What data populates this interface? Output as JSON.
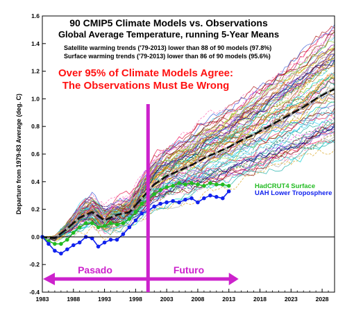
{
  "chart_data": {
    "type": "line",
    "title": "90 CMIP5 Climate Models vs. Observations",
    "subtitle": "Global Average Temperature, running 5-Year Means",
    "notes": [
      "Satellite warming trends ('79-2013) lower than 88 of 90 models (97.8%)",
      "Surface warming trends ('79-2013) lower than 86 of 90 models (95.6%)"
    ],
    "headline": [
      "Over 95% of Climate Models Agree:",
      "The Observations Must Be Wrong"
    ],
    "ylabel": "Departure from 1979-83 Average (deg. C)",
    "xlabel": "",
    "xlim": [
      1983,
      2030
    ],
    "ylim": [
      -0.4,
      1.6
    ],
    "x_ticks": [
      "1983",
      "1988",
      "1993",
      "1998",
      "2003",
      "2008",
      "2013",
      "2018",
      "2023",
      "2028"
    ],
    "y_ticks": [
      "-0.4",
      "-0.2",
      "0.0",
      "0.2",
      "0.4",
      "0.6",
      "0.8",
      "1.0",
      "1.2",
      "1.4",
      "1.6"
    ],
    "grid": false,
    "model_count": 90,
    "model_mean": {
      "x": [
        1983,
        1985,
        1987,
        1989,
        1991,
        1993,
        1995,
        1997,
        1999,
        2001,
        2003,
        2005,
        2007,
        2009,
        2011,
        2013,
        2015,
        2017,
        2019,
        2021,
        2023,
        2025,
        2027,
        2029,
        2030
      ],
      "values": [
        0.0,
        -0.01,
        0.06,
        0.14,
        0.18,
        0.12,
        0.16,
        0.18,
        0.28,
        0.38,
        0.44,
        0.48,
        0.52,
        0.57,
        0.61,
        0.65,
        0.7,
        0.74,
        0.79,
        0.84,
        0.89,
        0.94,
        1.0,
        1.05,
        1.07
      ]
    },
    "series": [
      {
        "name": "HadCRUT4 Surface",
        "color": "#22bb22",
        "x": [
          1983,
          1984,
          1985,
          1986,
          1987,
          1988,
          1989,
          1990,
          1991,
          1992,
          1993,
          1994,
          1995,
          1996,
          1997,
          1998,
          1999,
          2000,
          2001,
          2002,
          2003,
          2004,
          2005,
          2006,
          2007,
          2008,
          2009,
          2010,
          2011,
          2012,
          2013
        ],
        "values": [
          0.0,
          -0.03,
          -0.05,
          -0.05,
          -0.02,
          0.03,
          0.07,
          0.1,
          0.1,
          0.07,
          0.08,
          0.1,
          0.09,
          0.1,
          0.13,
          0.18,
          0.24,
          0.27,
          0.31,
          0.34,
          0.36,
          0.37,
          0.39,
          0.38,
          0.39,
          0.38,
          0.37,
          0.39,
          0.38,
          0.38,
          0.37
        ]
      },
      {
        "name": "UAH Lower Troposphere",
        "color": "#1122ee",
        "x": [
          1983,
          1984,
          1985,
          1986,
          1987,
          1988,
          1989,
          1990,
          1991,
          1992,
          1993,
          1994,
          1995,
          1996,
          1997,
          1998,
          1999,
          2000,
          2001,
          2002,
          2003,
          2004,
          2005,
          2006,
          2007,
          2008,
          2009,
          2010,
          2011,
          2012,
          2013
        ],
        "values": [
          0.0,
          -0.05,
          -0.1,
          -0.12,
          -0.09,
          -0.06,
          -0.04,
          0.0,
          -0.01,
          -0.07,
          -0.04,
          -0.02,
          -0.02,
          0.02,
          0.07,
          0.12,
          0.17,
          0.19,
          0.22,
          0.24,
          0.25,
          0.26,
          0.25,
          0.27,
          0.28,
          0.25,
          0.28,
          0.3,
          0.29,
          0.28,
          0.33
        ]
      }
    ],
    "annotations": {
      "divider_year": 2000,
      "arrow_range": [
        1983,
        2013
      ],
      "past_label": "Pasado",
      "future_label": "Futuro"
    }
  },
  "colors": {
    "title": "#000000",
    "headline": "#ff1111",
    "annotation": "#cc22cc",
    "mean": "#111111",
    "mean_marker": "#999999",
    "axis": "#000000"
  }
}
